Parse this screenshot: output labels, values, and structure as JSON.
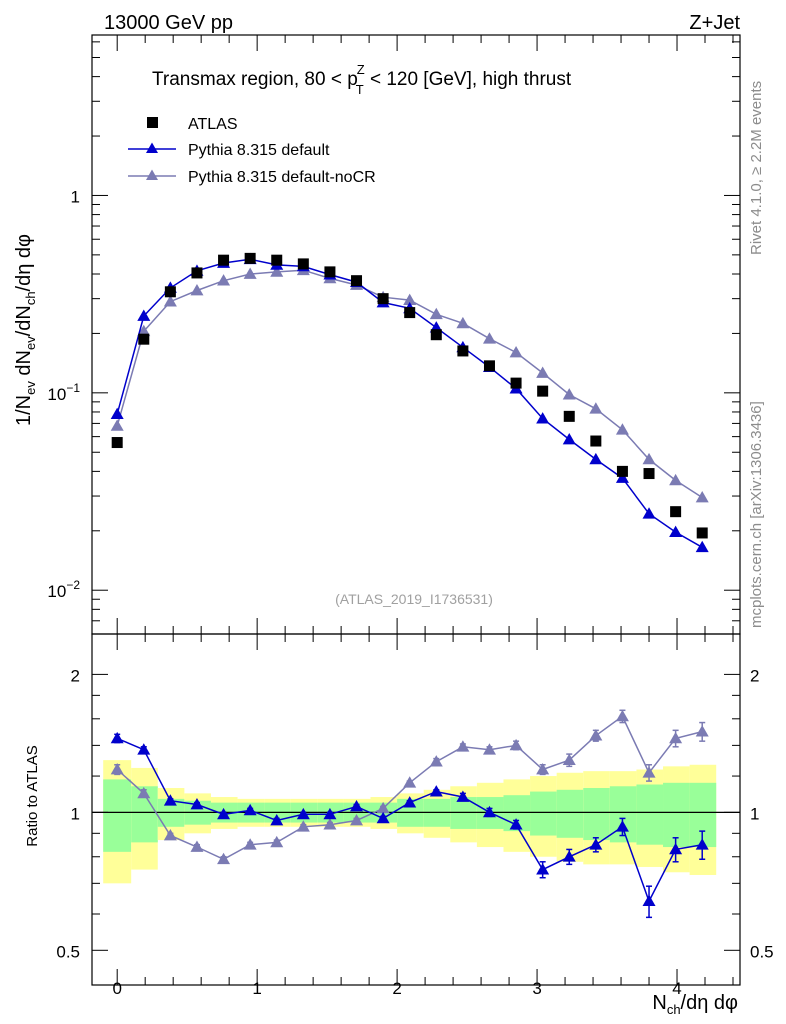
{
  "header": {
    "left": "13000 GeV pp",
    "right": "Z+Jet"
  },
  "side": {
    "rivet": "Rivet 4.1.0, ≥ 2.2M events",
    "mcplots": "mcplots.cern.ch [arXiv:1306.3436]"
  },
  "chart_data": {
    "type": "scatter",
    "title_parts": {
      "pre": "Transmax region, 80 < p",
      "sup": "Z",
      "sub": "T",
      "post": " < 120 [GeV], high thrust"
    },
    "watermark": "(ATLAS_2019_I1736531)",
    "xlabel": {
      "main": "N",
      "sub": "ch",
      "rest": "/dη dφ"
    },
    "ylabel": "1/N_ev dN_ev/dN_ch/dη dφ",
    "ratio_ylabel": "Ratio to ATLAS",
    "xlim": [
      -0.18,
      4.45
    ],
    "ylim": [
      0.006,
      6.5
    ],
    "ratio_ylim": [
      0.42,
      2.45
    ],
    "x_ticks": [
      "0",
      "1",
      "2",
      "3",
      "4"
    ],
    "x_tick_values": [
      0,
      1,
      2,
      3,
      4
    ],
    "y_tick_labels": [
      {
        "value": 1,
        "mantissa": "1",
        "exp": ""
      },
      {
        "value": 0.1,
        "mantissa": "10",
        "exp": "−1"
      },
      {
        "value": 0.01,
        "mantissa": "10",
        "exp": "−2"
      }
    ],
    "ratio_ticks": [
      {
        "value": 2,
        "label": "2"
      },
      {
        "value": 1,
        "label": "1"
      },
      {
        "value": 0.5,
        "label": "0.5"
      }
    ],
    "x": [
      0.0,
      0.19,
      0.38,
      0.57,
      0.76,
      0.95,
      1.14,
      1.33,
      1.52,
      1.71,
      1.9,
      2.09,
      2.28,
      2.47,
      2.66,
      2.85,
      3.04,
      3.23,
      3.42,
      3.61,
      3.8,
      3.99,
      4.18
    ],
    "band_edges": [
      -0.1,
      0.1,
      0.29,
      0.48,
      0.67,
      0.86,
      1.05,
      1.24,
      1.43,
      1.62,
      1.81,
      2.0,
      2.19,
      2.38,
      2.57,
      2.76,
      2.95,
      3.14,
      3.33,
      3.52,
      3.71,
      3.9,
      4.09,
      4.28
    ],
    "band_green": [
      0.18,
      0.14,
      0.07,
      0.06,
      0.05,
      0.05,
      0.05,
      0.05,
      0.05,
      0.05,
      0.05,
      0.07,
      0.07,
      0.08,
      0.08,
      0.09,
      0.11,
      0.12,
      0.13,
      0.14,
      0.15,
      0.16,
      0.16
    ],
    "band_yellow": [
      0.3,
      0.25,
      0.13,
      0.1,
      0.08,
      0.07,
      0.07,
      0.07,
      0.07,
      0.07,
      0.08,
      0.1,
      0.12,
      0.14,
      0.16,
      0.18,
      0.2,
      0.22,
      0.23,
      0.23,
      0.24,
      0.26,
      0.27
    ],
    "series": [
      {
        "name": "ATLAS",
        "color": "#000000",
        "marker": "square",
        "values": [
          0.056,
          0.187,
          0.325,
          0.405,
          0.47,
          0.48,
          0.47,
          0.45,
          0.41,
          0.37,
          0.3,
          0.255,
          0.197,
          0.163,
          0.137,
          0.112,
          0.102,
          0.076,
          0.057,
          0.04,
          0.039,
          0.025,
          0.0195
        ]
      },
      {
        "name": "Pythia 8.315 default",
        "color": "#0000cc",
        "marker": "triangle",
        "values": [
          0.078,
          0.245,
          0.34,
          0.415,
          0.455,
          0.475,
          0.445,
          0.437,
          0.397,
          0.364,
          0.287,
          0.268,
          0.214,
          0.17,
          0.135,
          0.105,
          0.074,
          0.058,
          0.046,
          0.037,
          0.0244,
          0.0197,
          0.0165
        ],
        "ratio": [
          1.45,
          1.37,
          1.06,
          1.04,
          0.99,
          1.01,
          0.96,
          0.99,
          0.99,
          1.03,
          0.97,
          1.05,
          1.11,
          1.08,
          1.0,
          0.94,
          0.75,
          0.8,
          0.85,
          0.93,
          0.64,
          0.83,
          0.85
        ],
        "ratio_err": [
          0.03,
          0.02,
          0.01,
          0.01,
          0.01,
          0.01,
          0.01,
          0.01,
          0.01,
          0.01,
          0.01,
          0.01,
          0.01,
          0.02,
          0.02,
          0.02,
          0.03,
          0.03,
          0.03,
          0.04,
          0.05,
          0.05,
          0.06
        ]
      },
      {
        "name": "Pythia 8.315 default-noCR",
        "color": "#7b7bb3",
        "marker": "triangle",
        "values": [
          0.068,
          0.205,
          0.29,
          0.33,
          0.37,
          0.4,
          0.41,
          0.418,
          0.38,
          0.352,
          0.305,
          0.295,
          0.25,
          0.225,
          0.188,
          0.16,
          0.126,
          0.098,
          0.083,
          0.065,
          0.046,
          0.036,
          0.0295
        ],
        "ratio": [
          1.24,
          1.1,
          0.89,
          0.84,
          0.79,
          0.85,
          0.86,
          0.93,
          0.94,
          0.96,
          1.02,
          1.16,
          1.29,
          1.39,
          1.37,
          1.4,
          1.24,
          1.3,
          1.47,
          1.62,
          1.22,
          1.45,
          1.5
        ],
        "ratio_err": [
          0.03,
          0.02,
          0.01,
          0.01,
          0.01,
          0.01,
          0.01,
          0.01,
          0.01,
          0.01,
          0.01,
          0.01,
          0.02,
          0.02,
          0.02,
          0.03,
          0.03,
          0.04,
          0.04,
          0.05,
          0.05,
          0.06,
          0.07
        ]
      }
    ]
  }
}
